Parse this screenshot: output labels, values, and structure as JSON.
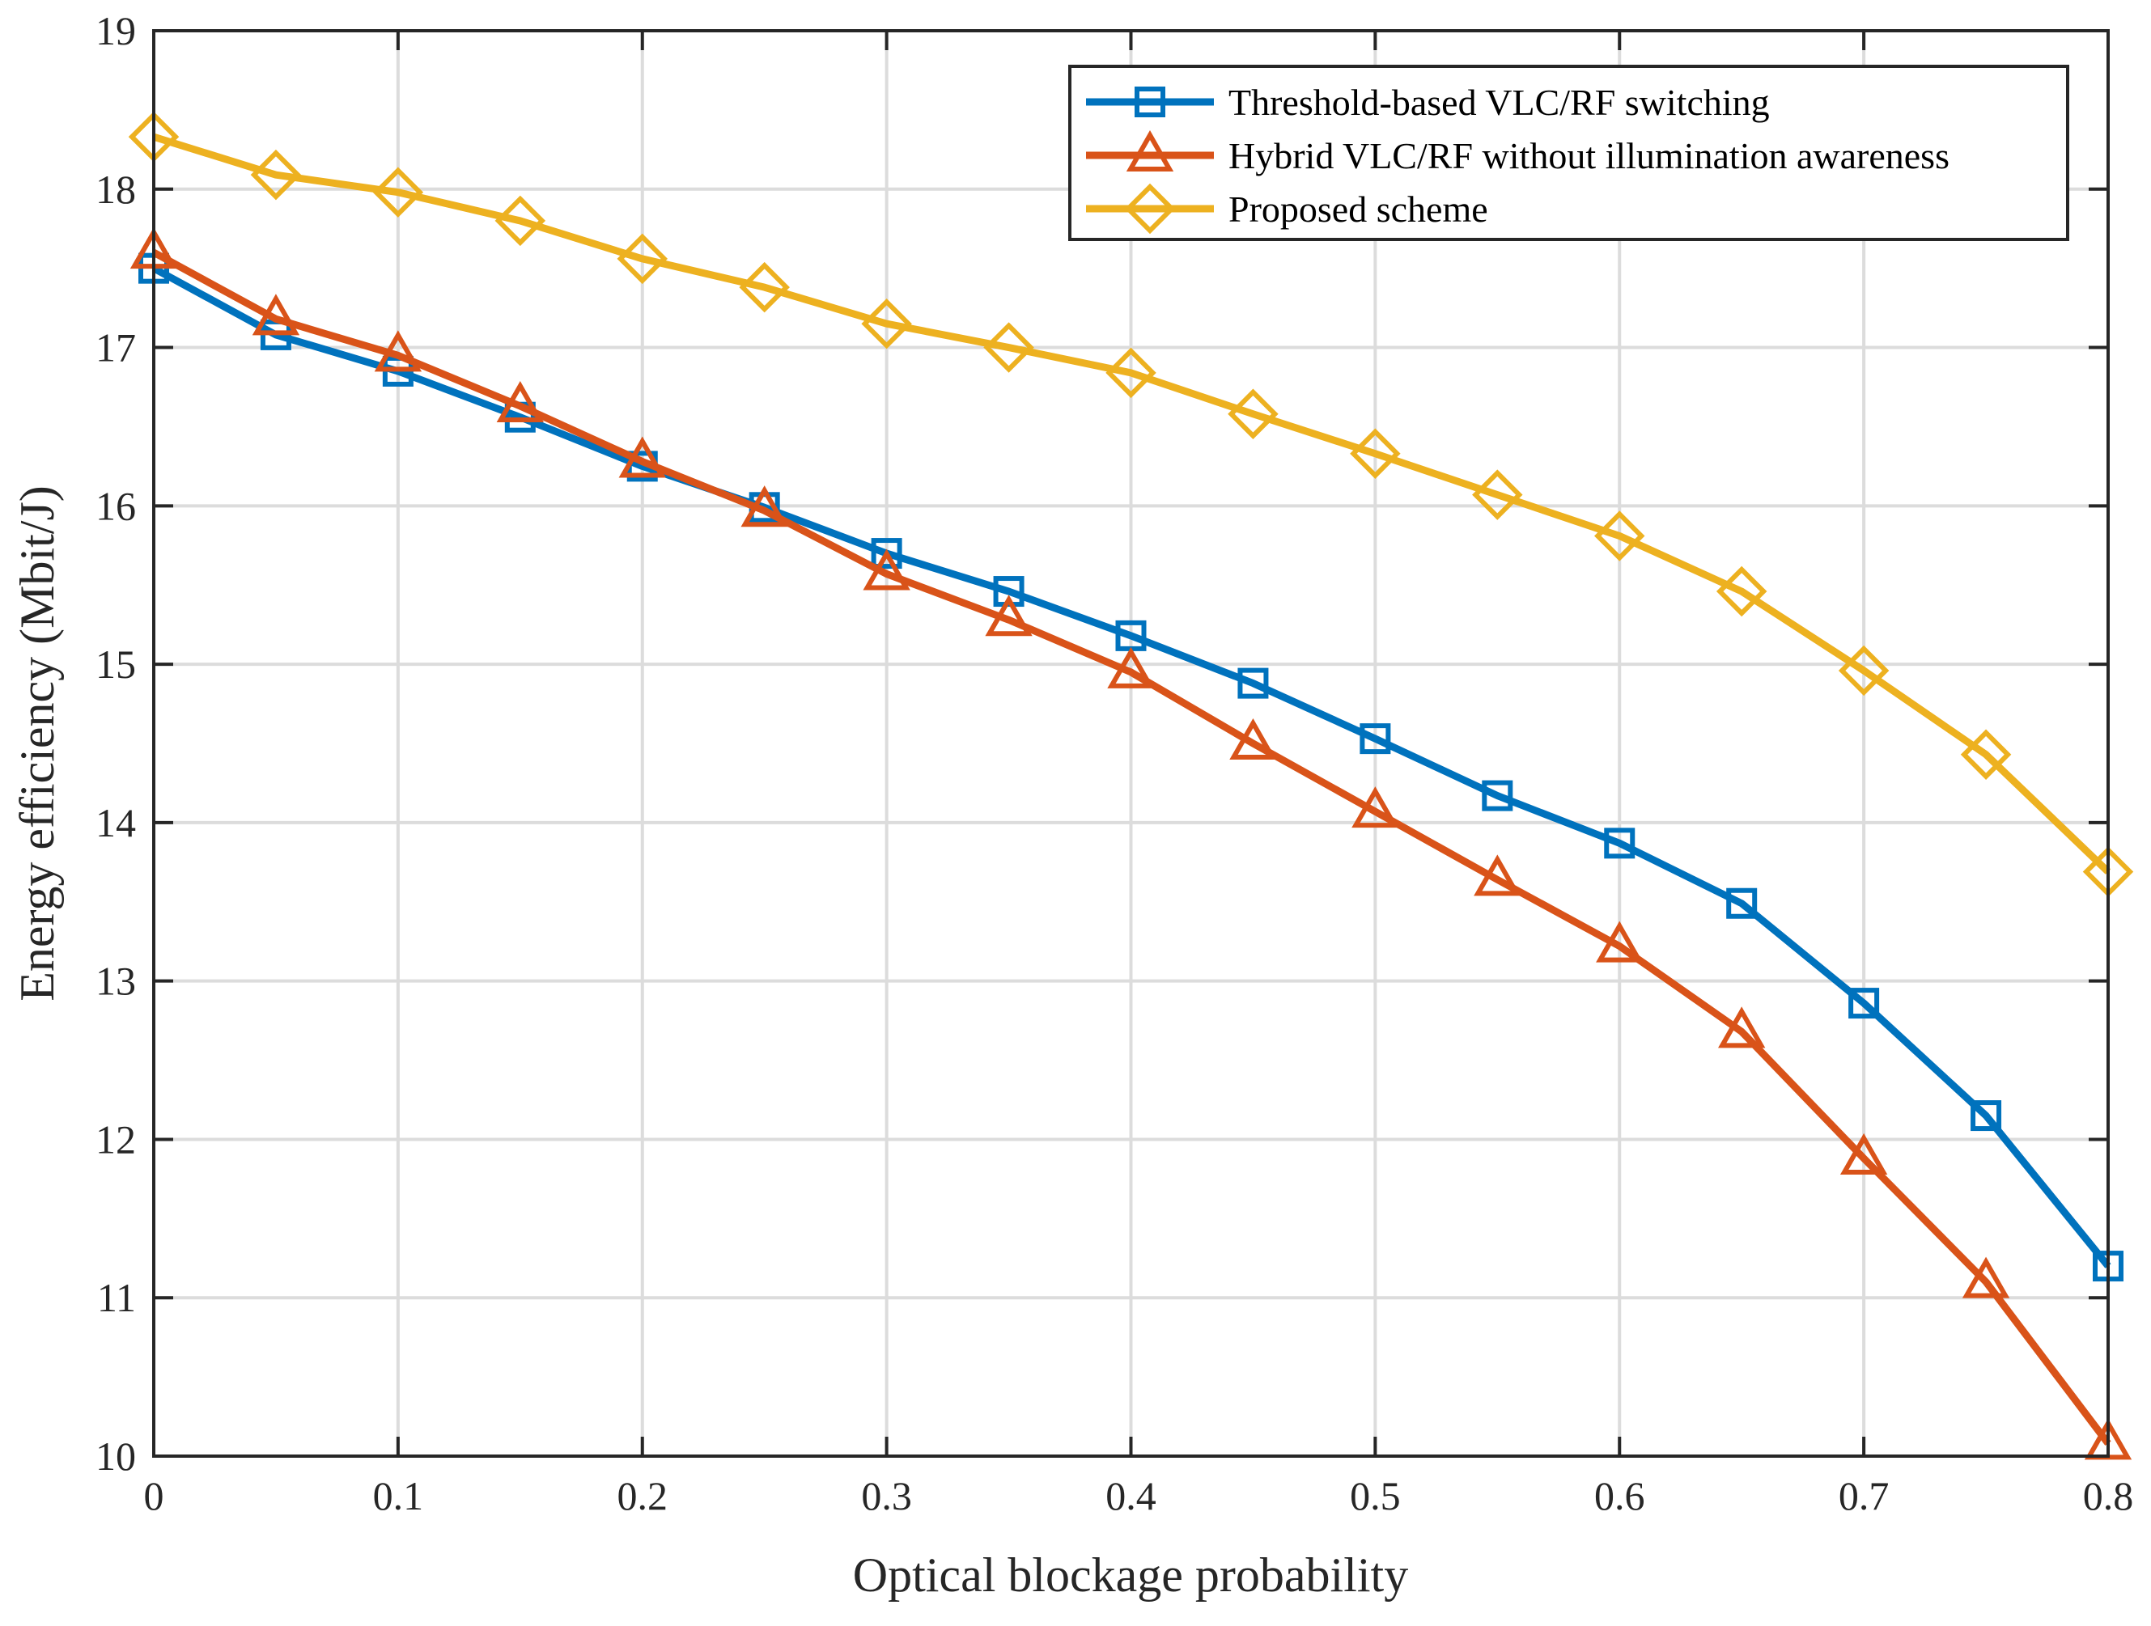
{
  "chart_data": {
    "type": "line",
    "xlabel": "Optical blockage probability",
    "ylabel": "Energy efficiency (Mbit/J)",
    "xlim": [
      0,
      0.8
    ],
    "ylim": [
      10,
      19
    ],
    "xticks": [
      0,
      0.1,
      0.2,
      0.3,
      0.4,
      0.5,
      0.6,
      0.7,
      0.8
    ],
    "yticks": [
      10,
      11,
      12,
      13,
      14,
      15,
      16,
      17,
      18,
      19
    ],
    "xtick_labels": [
      "0",
      "0.1",
      "0.2",
      "0.3",
      "0.4",
      "0.5",
      "0.6",
      "0.7",
      "0.8"
    ],
    "ytick_labels": [
      "10",
      "11",
      "12",
      "13",
      "14",
      "15",
      "16",
      "17",
      "18",
      "19"
    ],
    "grid": true,
    "legend_position": "top-right",
    "x": [
      0,
      0.05,
      0.1,
      0.15,
      0.2,
      0.25,
      0.3,
      0.35,
      0.4,
      0.45,
      0.5,
      0.55,
      0.6,
      0.65,
      0.7,
      0.75,
      0.8
    ],
    "series": [
      {
        "name": "Threshold-based VLC/RF switching",
        "color": "#0072BD",
        "marker": "square",
        "values": [
          17.5,
          17.08,
          16.85,
          16.56,
          16.25,
          15.99,
          15.7,
          15.46,
          15.18,
          14.88,
          14.53,
          14.17,
          13.87,
          13.49,
          12.86,
          12.15,
          11.2
        ]
      },
      {
        "name": "Hybrid VLC/RF without illumination awareness",
        "color": "#D95319",
        "marker": "triangle",
        "values": [
          17.6,
          17.18,
          16.95,
          16.63,
          16.28,
          15.97,
          15.57,
          15.28,
          14.95,
          14.5,
          14.07,
          13.64,
          13.22,
          12.68,
          11.88,
          11.1,
          10.08
        ]
      },
      {
        "name": "Proposed scheme",
        "color": "#EDB120",
        "marker": "diamond",
        "values": [
          18.33,
          18.09,
          17.98,
          17.8,
          17.56,
          17.38,
          17.15,
          17.0,
          16.84,
          16.58,
          16.33,
          16.07,
          15.81,
          15.46,
          14.96,
          14.43,
          13.69
        ]
      }
    ]
  }
}
